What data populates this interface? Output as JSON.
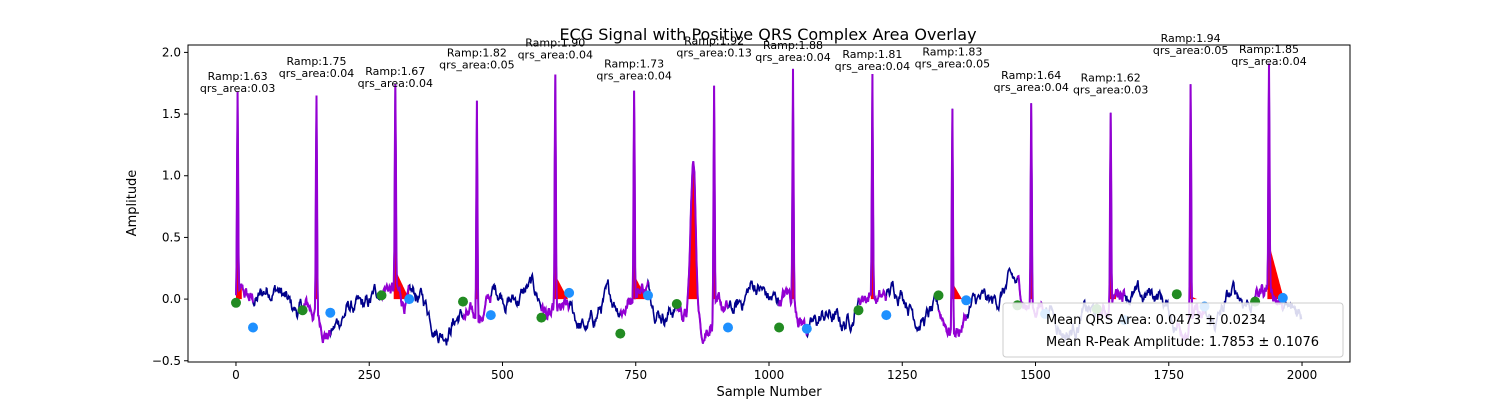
{
  "chart_data": {
    "type": "line",
    "title": "ECG Signal with Positive QRS Complex Area Overlay",
    "xlabel": "Sample Number",
    "ylabel": "Amplitude",
    "xlim": [
      -90,
      2090
    ],
    "ylim": [
      -0.51,
      2.06
    ],
    "xticks": [
      0,
      250,
      500,
      750,
      1000,
      1250,
      1500,
      1750,
      2000
    ],
    "yticks": [
      -0.5,
      0.0,
      0.5,
      1.0,
      1.5,
      2.0
    ],
    "xtick_labels": [
      "0",
      "250",
      "500",
      "750",
      "1000",
      "1250",
      "1500",
      "1750",
      "2000"
    ],
    "ytick_labels": [
      "−0.5",
      "0.0",
      "0.5",
      "1.0",
      "1.5",
      "2.0"
    ],
    "grid": false,
    "n_samples": 2000,
    "colors": {
      "ecg_line": "#00008b",
      "qrs_segment": "#9400d3",
      "qrs_fill": "#ff0000",
      "onset_marker": "#228b22",
      "offset_marker": "#1e90ff"
    },
    "beats": [
      {
        "r_peak": 3,
        "amplitude": 1.63,
        "qrs_area": 0.03,
        "onset": [
          0,
          -0.03
        ],
        "offset": [
          32,
          -0.23
        ],
        "tail": [
          3,
          8,
          0.0
        ]
      },
      {
        "r_peak": 151,
        "amplitude": 1.75,
        "qrs_area": 0.04,
        "onset": [
          125,
          -0.09
        ],
        "offset": [
          177,
          -0.11
        ],
        "tail": [
          151,
          8,
          0.0
        ]
      },
      {
        "r_peak": 299,
        "amplitude": 1.67,
        "qrs_area": 0.04,
        "onset": [
          273,
          0.03
        ],
        "offset": [
          325,
          0.0
        ],
        "tail": [
          299,
          26,
          0.22
        ]
      },
      {
        "r_peak": 452,
        "amplitude": 1.82,
        "qrs_area": 0.05,
        "onset": [
          426,
          -0.02
        ],
        "offset": [
          478,
          -0.13
        ],
        "tail": [
          452,
          10,
          0.0
        ]
      },
      {
        "r_peak": 599,
        "amplitude": 1.9,
        "qrs_area": 0.04,
        "onset": [
          573,
          -0.15
        ],
        "offset": [
          625,
          0.05
        ],
        "tail": [
          599,
          24,
          0.18
        ]
      },
      {
        "r_peak": 747,
        "amplitude": 1.73,
        "qrs_area": 0.04,
        "onset": [
          721,
          -0.28
        ],
        "offset": [
          773,
          0.03
        ],
        "tail": [
          747,
          24,
          0.18
        ]
      },
      {
        "r_peak": 897,
        "amplitude": 1.92,
        "qrs_area": 0.13,
        "onset": [
          827,
          -0.04
        ],
        "offset": [
          923,
          -0.23
        ],
        "tail": [
          897,
          10,
          0.0
        ]
      },
      {
        "r_peak": 1045,
        "amplitude": 1.88,
        "qrs_area": 0.04,
        "onset": [
          1019,
          -0.23
        ],
        "offset": [
          1071,
          -0.24
        ],
        "tail": [
          1045,
          10,
          0.0
        ]
      },
      {
        "r_peak": 1194,
        "amplitude": 1.81,
        "qrs_area": 0.04,
        "onset": [
          1168,
          -0.09
        ],
        "offset": [
          1220,
          -0.13
        ],
        "tail": [
          1194,
          10,
          0.0
        ]
      },
      {
        "r_peak": 1344,
        "amplitude": 1.83,
        "qrs_area": 0.05,
        "onset": [
          1318,
          0.03
        ],
        "offset": [
          1370,
          -0.01
        ],
        "tail": [
          1344,
          18,
          0.12
        ]
      },
      {
        "r_peak": 1492,
        "amplitude": 1.64,
        "qrs_area": 0.04,
        "onset": [
          1466,
          -0.05
        ],
        "offset": [
          1518,
          -0.12
        ],
        "tail": [
          1492,
          10,
          0.0
        ]
      },
      {
        "r_peak": 1641,
        "amplitude": 1.62,
        "qrs_area": 0.03,
        "onset": [
          1615,
          -0.08
        ],
        "offset": [
          1667,
          -0.17
        ],
        "tail": [
          1641,
          10,
          0.0
        ]
      },
      {
        "r_peak": 1791,
        "amplitude": 1.94,
        "qrs_area": 0.05,
        "onset": [
          1765,
          0.04
        ],
        "offset": [
          1817,
          -0.06
        ],
        "tail": [
          1791,
          12,
          0.02
        ]
      },
      {
        "r_peak": 1938,
        "amplitude": 1.85,
        "qrs_area": 0.04,
        "onset": [
          1912,
          -0.02
        ],
        "offset": [
          1964,
          0.01
        ],
        "tail": [
          1938,
          28,
          0.42
        ]
      }
    ],
    "legend": {
      "placement": "lower-right",
      "entries": [
        "Mean QRS Area: 0.0473 ± 0.0234",
        "Mean R-Peak Amplitude: 1.7853 ± 0.1076"
      ]
    }
  }
}
